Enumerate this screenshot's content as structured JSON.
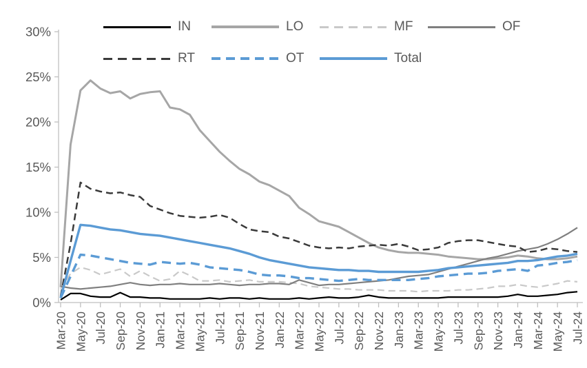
{
  "chart_data": {
    "type": "line",
    "title": "",
    "xlabel": "",
    "ylabel": "",
    "ylim": [
      0,
      30
    ],
    "y_tick_labels": [
      "0%",
      "5%",
      "10%",
      "15%",
      "20%",
      "25%",
      "30%"
    ],
    "x_tick_every": 2,
    "grid": false,
    "legend_position": "top",
    "legend_rows": [
      4,
      3
    ],
    "axis_color": "#BFBFBF",
    "label_color": "#595959",
    "x": [
      "Mar-20",
      "Apr-20",
      "May-20",
      "Jun-20",
      "Jul-20",
      "Aug-20",
      "Sep-20",
      "Oct-20",
      "Nov-20",
      "Dec-20",
      "Jan-21",
      "Feb-21",
      "Mar-21",
      "Apr-21",
      "May-21",
      "Jun-21",
      "Jul-21",
      "Aug-21",
      "Sep-21",
      "Oct-21",
      "Nov-21",
      "Dec-21",
      "Jan-22",
      "Feb-22",
      "Mar-22",
      "Apr-22",
      "May-22",
      "Jun-22",
      "Jul-22",
      "Aug-22",
      "Sep-22",
      "Oct-22",
      "Nov-22",
      "Dec-22",
      "Jan-23",
      "Feb-23",
      "Mar-23",
      "Apr-23",
      "May-23",
      "Jun-23",
      "Jul-23",
      "Aug-23",
      "Sep-23",
      "Oct-23",
      "Nov-23",
      "Dec-23",
      "Jan-24",
      "Feb-24",
      "Mar-24",
      "Apr-24",
      "May-24",
      "Jun-24",
      "Jul-24"
    ],
    "series": [
      {
        "name": "IN",
        "color": "#000000",
        "style": "solid",
        "width": 2.2,
        "values": [
          0.3,
          1.0,
          1.0,
          0.7,
          0.6,
          0.6,
          1.1,
          0.6,
          0.6,
          0.5,
          0.5,
          0.4,
          0.4,
          0.4,
          0.4,
          0.5,
          0.4,
          0.5,
          0.5,
          0.4,
          0.5,
          0.4,
          0.4,
          0.4,
          0.5,
          0.4,
          0.5,
          0.6,
          0.5,
          0.5,
          0.6,
          0.8,
          0.6,
          0.5,
          0.5,
          0.5,
          0.5,
          0.5,
          0.5,
          0.6,
          0.6,
          0.6,
          0.6,
          0.6,
          0.6,
          0.7,
          0.9,
          0.7,
          0.7,
          0.8,
          0.9,
          1.1,
          1.2
        ]
      },
      {
        "name": "LO",
        "color": "#A6A6A6",
        "style": "solid",
        "width": 3,
        "values": [
          1.7,
          17.5,
          23.5,
          24.6,
          23.7,
          23.2,
          23.4,
          22.6,
          23.1,
          23.3,
          23.4,
          21.6,
          21.4,
          20.8,
          19.1,
          17.9,
          16.7,
          15.7,
          14.8,
          14.2,
          13.4,
          13.0,
          12.4,
          11.8,
          10.5,
          9.8,
          9.0,
          8.7,
          8.4,
          7.8,
          7.2,
          6.6,
          6.1,
          5.8,
          5.6,
          5.5,
          5.5,
          5.4,
          5.3,
          5.1,
          5.0,
          4.9,
          4.8,
          4.8,
          4.9,
          5.0,
          5.2,
          5.1,
          4.9,
          4.8,
          4.8,
          4.9,
          5.1
        ]
      },
      {
        "name": "MF",
        "color": "#C9C9C9",
        "style": "dashed",
        "width": 2.2,
        "values": [
          1.5,
          3.2,
          3.9,
          3.6,
          3.1,
          3.4,
          3.7,
          2.9,
          3.5,
          2.9,
          2.4,
          2.6,
          3.5,
          3.0,
          2.4,
          2.4,
          2.5,
          2.3,
          2.4,
          2.5,
          2.3,
          2.3,
          2.3,
          2.2,
          2.1,
          1.8,
          1.7,
          1.6,
          1.5,
          1.5,
          1.4,
          1.4,
          1.4,
          1.3,
          1.3,
          1.3,
          1.2,
          1.3,
          1.3,
          1.3,
          1.4,
          1.4,
          1.5,
          1.6,
          1.8,
          1.8,
          2.0,
          1.8,
          1.7,
          1.9,
          2.1,
          2.4,
          2.3
        ]
      },
      {
        "name": "OF",
        "color": "#7F7F7F",
        "style": "solid",
        "width": 2.2,
        "values": [
          1.8,
          1.6,
          1.5,
          1.6,
          1.7,
          1.8,
          2.0,
          2.2,
          2.0,
          1.9,
          2.0,
          2.0,
          2.1,
          2.0,
          2.0,
          2.0,
          2.1,
          2.0,
          1.9,
          2.0,
          2.0,
          2.1,
          2.1,
          2.0,
          2.5,
          2.2,
          1.9,
          2.0,
          2.0,
          2.1,
          2.2,
          2.3,
          2.4,
          2.5,
          2.7,
          2.9,
          3.0,
          3.1,
          3.4,
          3.7,
          4.0,
          4.3,
          4.6,
          4.9,
          5.1,
          5.4,
          5.7,
          5.9,
          6.1,
          6.5,
          7.0,
          7.6,
          8.3
        ]
      },
      {
        "name": "RT",
        "color": "#3A3A3A",
        "style": "dashed",
        "width": 2.5,
        "values": [
          0.7,
          6.5,
          13.3,
          12.6,
          12.3,
          12.1,
          12.2,
          11.9,
          11.7,
          10.7,
          10.3,
          9.9,
          9.6,
          9.5,
          9.4,
          9.5,
          9.7,
          9.4,
          8.7,
          8.1,
          7.9,
          7.8,
          7.3,
          7.1,
          6.7,
          6.3,
          6.1,
          6.0,
          6.1,
          6.0,
          6.2,
          6.3,
          6.4,
          6.3,
          6.5,
          6.2,
          5.8,
          5.9,
          6.1,
          6.6,
          6.8,
          6.9,
          6.9,
          6.7,
          6.5,
          6.3,
          6.2,
          5.6,
          5.7,
          6.0,
          5.9,
          5.7,
          5.6
        ]
      },
      {
        "name": "OT",
        "color": "#5B9BD5",
        "style": "dashed",
        "width": 3.4,
        "values": [
          0.5,
          2.9,
          5.3,
          5.2,
          5.0,
          4.8,
          4.6,
          4.4,
          4.3,
          4.2,
          4.5,
          4.4,
          4.3,
          4.4,
          4.2,
          3.9,
          3.8,
          3.7,
          3.6,
          3.4,
          3.1,
          3.0,
          3.0,
          2.9,
          2.7,
          2.7,
          2.6,
          2.5,
          2.4,
          2.5,
          2.6,
          2.5,
          2.5,
          2.5,
          2.5,
          2.5,
          2.6,
          2.7,
          2.9,
          3.0,
          3.1,
          3.2,
          3.2,
          3.3,
          3.5,
          3.6,
          3.7,
          3.5,
          4.1,
          4.2,
          4.4,
          4.5,
          4.7
        ]
      },
      {
        "name": "Total",
        "color": "#5B9BD5",
        "style": "solid",
        "width": 3.4,
        "values": [
          0.5,
          4.6,
          8.6,
          8.5,
          8.3,
          8.1,
          8.0,
          7.8,
          7.6,
          7.5,
          7.4,
          7.2,
          7.0,
          6.8,
          6.6,
          6.4,
          6.2,
          6.0,
          5.7,
          5.4,
          5.0,
          4.7,
          4.5,
          4.3,
          4.1,
          3.9,
          3.8,
          3.7,
          3.6,
          3.6,
          3.5,
          3.5,
          3.4,
          3.4,
          3.4,
          3.4,
          3.4,
          3.5,
          3.6,
          3.8,
          3.9,
          4.0,
          4.1,
          4.2,
          4.3,
          4.4,
          4.6,
          4.6,
          4.7,
          4.9,
          5.1,
          5.2,
          5.4
        ]
      }
    ]
  }
}
